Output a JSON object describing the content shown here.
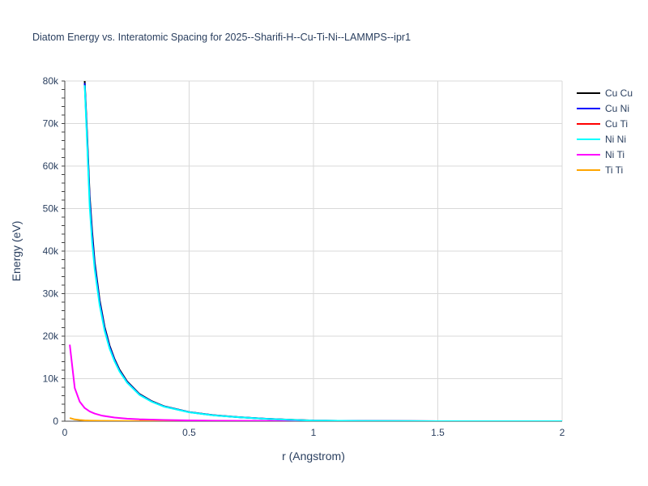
{
  "chart_data": {
    "type": "line",
    "title": "Diatom Energy vs. Interatomic Spacing for 2025--Sharifi-H--Cu-Ti-Ni--LAMMPS--ipr1",
    "xlabel": "r (Angstrom)",
    "ylabel": "Energy (eV)",
    "xlim": [
      0,
      2
    ],
    "ylim": [
      0,
      80000
    ],
    "x_ticks": [
      0,
      0.5,
      1,
      1.5,
      2
    ],
    "x_tick_labels": [
      "0",
      "0.5",
      "1",
      "1.5",
      "2"
    ],
    "y_ticks": [
      0,
      10000,
      20000,
      30000,
      40000,
      50000,
      60000,
      70000,
      80000
    ],
    "y_tick_labels": [
      "0",
      "10k",
      "20k",
      "30k",
      "40k",
      "50k",
      "60k",
      "70k",
      "80k"
    ],
    "grid": true,
    "legend_position": "top-right",
    "series": [
      {
        "name": "Cu Cu",
        "color": "#000000",
        "x": [
          0.08,
          0.09,
          0.1,
          0.11,
          0.12,
          0.14,
          0.16,
          0.18,
          0.2,
          0.22,
          0.25,
          0.3,
          0.35,
          0.4,
          0.5,
          0.6,
          0.7,
          0.8,
          0.9,
          1.0,
          1.2,
          1.5,
          2.0
        ],
        "y": [
          80000,
          67000,
          53000,
          44500,
          37500,
          28500,
          22200,
          17800,
          14600,
          12100,
          9400,
          6400,
          4700,
          3500,
          2150,
          1400,
          950,
          600,
          350,
          150,
          40,
          5,
          0
        ]
      },
      {
        "name": "Cu Ni",
        "color": "#0000ff",
        "x": [
          0.08,
          0.09,
          0.1,
          0.11,
          0.12,
          0.14,
          0.16,
          0.18,
          0.2,
          0.22,
          0.25,
          0.3,
          0.35,
          0.4,
          0.5,
          0.6,
          0.7,
          0.8,
          0.9,
          1.0,
          1.2,
          1.5,
          2.0
        ],
        "y": [
          79500,
          66000,
          52000,
          43500,
          36800,
          28000,
          21800,
          17500,
          14400,
          11900,
          9250,
          6300,
          4620,
          3450,
          2120,
          1380,
          935,
          590,
          340,
          145,
          38,
          5,
          0
        ]
      },
      {
        "name": "Cu Ti",
        "color": "#ff0000",
        "x": [
          0.3,
          0.5,
          0.7,
          0.9,
          1.0,
          1.2,
          1.5,
          2.0
        ],
        "y": [
          60,
          40,
          25,
          15,
          10,
          5,
          2,
          0
        ]
      },
      {
        "name": "Ni Ni",
        "color": "#00ffff",
        "x": [
          0.08,
          0.09,
          0.1,
          0.11,
          0.12,
          0.14,
          0.16,
          0.18,
          0.2,
          0.22,
          0.25,
          0.3,
          0.35,
          0.4,
          0.5,
          0.6,
          0.7,
          0.8,
          0.9,
          1.0,
          1.2,
          1.5,
          2.0
        ],
        "y": [
          79000,
          65000,
          50500,
          42000,
          35800,
          27300,
          21300,
          17100,
          14100,
          11700,
          9100,
          6200,
          4550,
          3400,
          2100,
          1360,
          920,
          580,
          335,
          140,
          36,
          4,
          0
        ]
      },
      {
        "name": "Ni Ti",
        "color": "#ff00ff",
        "x": [
          0.02,
          0.04,
          0.06,
          0.08,
          0.1,
          0.12,
          0.15,
          0.2,
          0.25,
          0.3,
          0.4,
          0.5,
          0.6,
          0.8,
          1.0,
          1.5,
          2.0
        ],
        "y": [
          18000,
          7800,
          4600,
          3100,
          2300,
          1800,
          1300,
          850,
          600,
          450,
          280,
          180,
          120,
          60,
          25,
          5,
          0
        ]
      },
      {
        "name": "Ti Ti",
        "color": "#ffa500",
        "x": [
          0.02,
          0.04,
          0.06,
          0.08,
          0.1,
          0.15,
          0.2,
          0.3,
          0.5,
          0.8,
          1.0,
          1.5,
          2.0
        ],
        "y": [
          750,
          420,
          280,
          200,
          150,
          90,
          60,
          35,
          15,
          6,
          3,
          1,
          0
        ]
      }
    ]
  }
}
